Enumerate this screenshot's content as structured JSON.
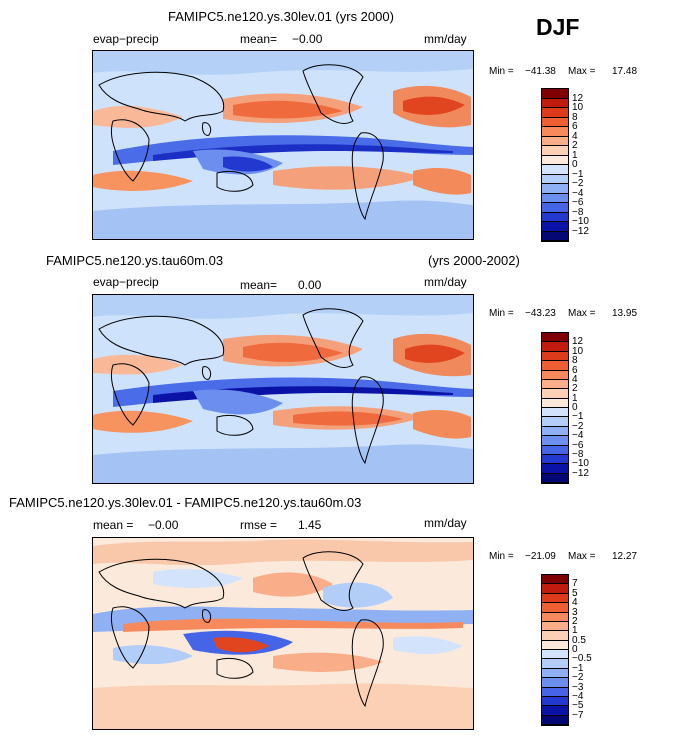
{
  "header": {
    "season": "DJF"
  },
  "panels": [
    {
      "title": "FAMIPC5.ne120.ys.30lev.01 (yrs 2000)",
      "title_right": "",
      "left_label": "evap−precip",
      "mean_label": "mean=",
      "mean_value": "−0.00",
      "rmse_label": "",
      "rmse_value": "",
      "units": "mm/day",
      "min_label": "Min =",
      "min_value": "−41.38",
      "max_label": "Max =",
      "max_value": "17.48",
      "colorbar": {
        "labels": [
          "12",
          "10",
          "8",
          "6",
          "4",
          "2",
          "1",
          "0",
          "−1",
          "−2",
          "−4",
          "−6",
          "−8",
          "−10",
          "−12"
        ],
        "colors": [
          "#7e0000",
          "#c11a0e",
          "#de3a1c",
          "#ef5f34",
          "#f68a5c",
          "#f9ad88",
          "#fbd0b5",
          "#fbeadc",
          "#d2e3fb",
          "#b2cdf7",
          "#8fb1f3",
          "#6b8eef",
          "#4564e6",
          "#2338cf",
          "#0b12a6",
          "#040875"
        ]
      }
    },
    {
      "title": "FAMIPC5.ne120.ys.tau60m.03",
      "title_right": "(yrs 2000-2002)",
      "left_label": "evap−precip",
      "mean_label": "mean=",
      "mean_value": "0.00",
      "rmse_label": "",
      "rmse_value": "",
      "units": "mm/day",
      "min_label": "Min =",
      "min_value": "−43.23",
      "max_label": "Max =",
      "max_value": "13.95",
      "colorbar": {
        "labels": [
          "12",
          "10",
          "8",
          "6",
          "4",
          "2",
          "1",
          "0",
          "−1",
          "−2",
          "−4",
          "−6",
          "−8",
          "−10",
          "−12"
        ],
        "colors": [
          "#7e0000",
          "#c11a0e",
          "#de3a1c",
          "#ef5f34",
          "#f68a5c",
          "#f9ad88",
          "#fbd0b5",
          "#fbeadc",
          "#d2e3fb",
          "#b2cdf7",
          "#8fb1f3",
          "#6b8eef",
          "#4564e6",
          "#2338cf",
          "#0b12a6",
          "#040875"
        ]
      }
    },
    {
      "title": "FAMIPC5.ne120.ys.30lev.01 - FAMIPC5.ne120.ys.tau60m.03",
      "title_right": "",
      "left_label": "",
      "mean_label": "mean =",
      "mean_value": "−0.00",
      "rmse_label": "rmse =",
      "rmse_value": "1.45",
      "units": "mm/day",
      "min_label": "Min =",
      "min_value": "−21.09",
      "max_label": "Max =",
      "max_value": "12.27",
      "colorbar": {
        "labels": [
          "7",
          "5",
          "4",
          "3",
          "2",
          "1",
          "0.5",
          "0",
          "−0.5",
          "−1",
          "−2",
          "−3",
          "−4",
          "−5",
          "−7"
        ],
        "colors": [
          "#7e0000",
          "#c11a0e",
          "#de3a1c",
          "#ef5f34",
          "#f68a5c",
          "#f9ad88",
          "#fbd0b5",
          "#fbeadc",
          "#d2e3fb",
          "#b2cdf7",
          "#8fb1f3",
          "#6b8eef",
          "#4564e6",
          "#2338cf",
          "#0b12a6",
          "#040875"
        ]
      }
    }
  ]
}
